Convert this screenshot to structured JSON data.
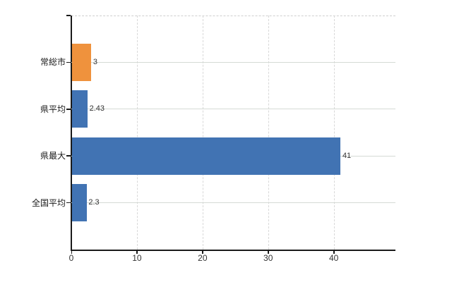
{
  "chart_data": {
    "type": "bar",
    "orientation": "horizontal",
    "title": "",
    "xlabel": "",
    "ylabel": "",
    "categories": [
      "常総市",
      "県平均",
      "県最大",
      "全国平均"
    ],
    "values": [
      3,
      2.43,
      41,
      2.3
    ],
    "value_labels": [
      "3",
      "2.43",
      "41",
      "2.3"
    ],
    "bar_colors": [
      "#ef923d",
      "#4173b3",
      "#4173b3",
      "#4173b3"
    ],
    "xlim": [
      0,
      49.4
    ],
    "x_ticks": [
      0,
      10,
      20,
      30,
      40
    ],
    "grid": true,
    "legend": false
  },
  "colors": {
    "bar_blue": "#4173b3",
    "bar_orange": "#ef923d",
    "axis": "#1a1a1a",
    "gridline": "#d5dad5",
    "text": "#333333",
    "background": "#ffffff"
  }
}
